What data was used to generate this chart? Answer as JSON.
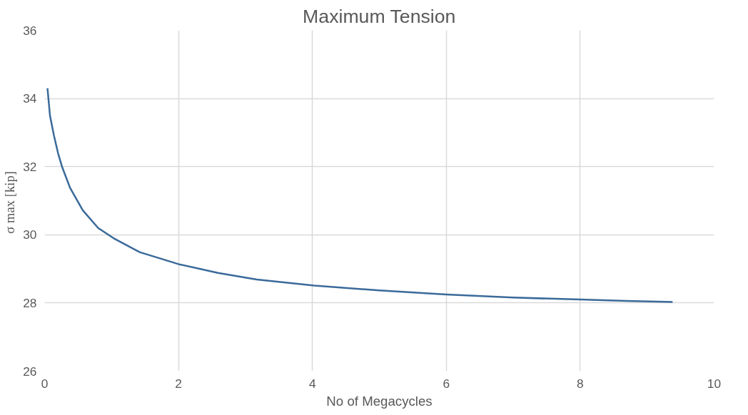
{
  "chart_data": {
    "type": "line",
    "title": "Maximum Tension",
    "xlabel": "No of Megacycles",
    "ylabel": "σ max  [kip]",
    "xlim": [
      0,
      10
    ],
    "xticks": [
      0,
      2,
      4,
      6,
      8,
      10
    ],
    "ylim": [
      26,
      36
    ],
    "yticks": [
      26,
      28,
      30,
      32,
      34,
      36
    ],
    "grid": true,
    "marker": "none",
    "line_style": "solid",
    "series": [
      {
        "color": "#3a6a9a",
        "x": [
          0.043,
          0.08,
          0.14,
          0.2,
          0.26,
          0.38,
          0.57,
          0.8,
          1.03,
          1.42,
          2,
          2.59,
          3.17,
          4.03,
          5,
          6,
          7,
          8,
          8.69,
          9.38
        ],
        "values": [
          34.3,
          33.5,
          32.91,
          32.4,
          32.0,
          31.38,
          30.72,
          30.2,
          29.9,
          29.49,
          29.14,
          28.88,
          28.69,
          28.51,
          28.37,
          28.25,
          28.16,
          28.1,
          28.06,
          28.03
        ]
      }
    ]
  }
}
